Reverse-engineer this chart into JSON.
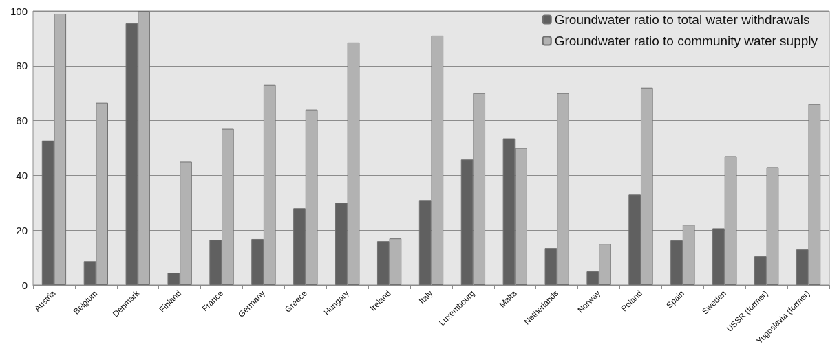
{
  "chart_data": {
    "type": "bar",
    "categories": [
      "Austria",
      "Belgium",
      "Denmark",
      "Finland",
      "France",
      "Germany",
      "Greece",
      "Hungary",
      "Ireland",
      "Italy",
      "Luxembourg",
      "Malta",
      "Netherlands",
      "Norway",
      "Poland",
      "Spain",
      "Sweden",
      "USSR (former)",
      "Yugoslavia (former)"
    ],
    "series": [
      {
        "name": "Groundwater ratio to total water withdrawals",
        "color": "#606060",
        "values": [
          52.7,
          8.7,
          95.5,
          4.5,
          16.5,
          16.8,
          28,
          30,
          16,
          31,
          45.8,
          53.5,
          13.5,
          5,
          33,
          16.3,
          20.7,
          10.5,
          13
        ]
      },
      {
        "name": "Groundwater ratio to community water supply",
        "color": "#b2b2b2",
        "values": [
          99,
          66.5,
          100,
          45,
          57,
          73,
          64,
          88.5,
          17,
          91,
          70,
          50,
          70,
          15,
          72,
          22,
          47,
          43,
          66
        ]
      }
    ],
    "ylim": [
      0,
      100
    ],
    "yticks": [
      0,
      20,
      40,
      60,
      80,
      100
    ],
    "grid": "y",
    "legend": "top right"
  }
}
